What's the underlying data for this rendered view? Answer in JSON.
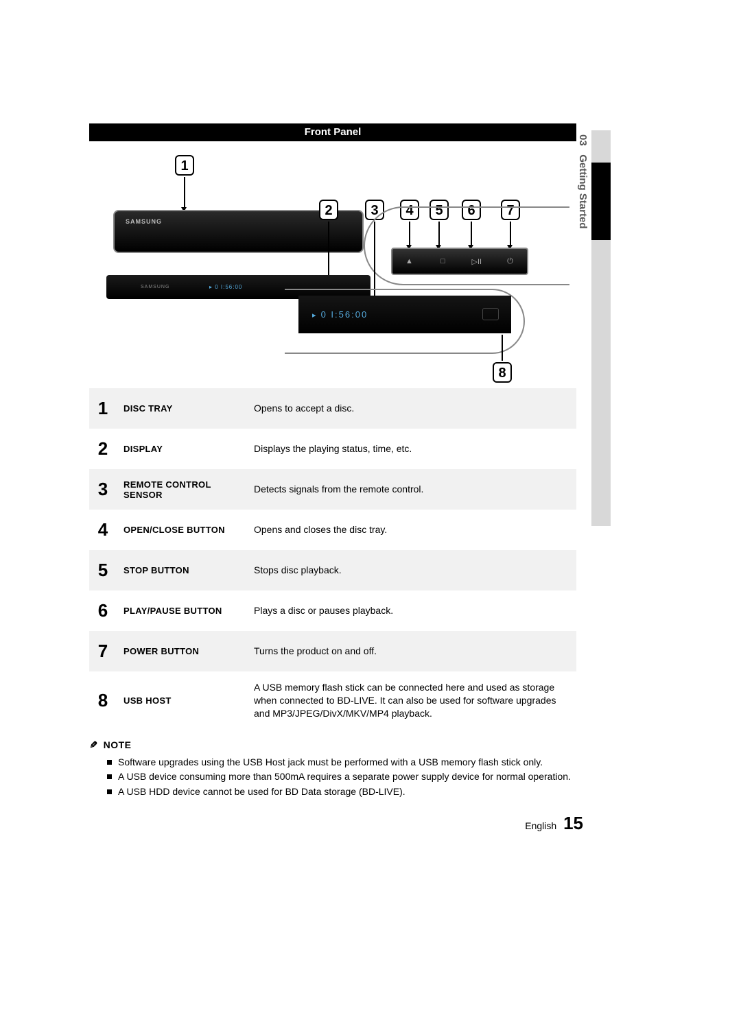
{
  "header": {
    "title": "Front Panel",
    "section_number": "03",
    "section_name": "Getting Started"
  },
  "diagram": {
    "device_brand": "SAMSUNG",
    "display_readout": "0 I:56:00",
    "control_icons": {
      "eject": "▲",
      "stop": "□",
      "play_pause": "▷II",
      "power": "⏻"
    },
    "callouts": [
      "1",
      "2",
      "3",
      "4",
      "5",
      "6",
      "7",
      "8"
    ]
  },
  "parts": [
    {
      "num": "1",
      "name": "DISC TRAY",
      "desc": "Opens to accept a disc."
    },
    {
      "num": "2",
      "name": "DISPLAY",
      "desc": "Displays the playing status, time, etc."
    },
    {
      "num": "3",
      "name": "REMOTE CONTROL SENSOR",
      "desc": "Detects signals from the remote control."
    },
    {
      "num": "4",
      "name": "OPEN/CLOSE BUTTON",
      "desc": "Opens and closes the disc tray."
    },
    {
      "num": "5",
      "name": "STOP BUTTON",
      "desc": "Stops disc playback."
    },
    {
      "num": "6",
      "name": "PLAY/PAUSE BUTTON",
      "desc": "Plays a disc or pauses playback."
    },
    {
      "num": "7",
      "name": "POWER BUTTON",
      "desc": "Turns the product on and off."
    },
    {
      "num": "8",
      "name": "USB HOST",
      "desc": "A USB memory flash stick can be connected here and used as storage when connected to BD-LIVE. It can also be used for software upgrades and MP3/JPEG/DivX/MKV/MP4 playback."
    }
  ],
  "note": {
    "label": "NOTE",
    "items": [
      "Software upgrades using the USB Host jack must be performed with a USB memory flash stick only.",
      "A USB device consuming more than 500mA requires a separate power supply device for normal operation.",
      "A USB HDD device cannot be used for BD Data storage (BD-LIVE)."
    ]
  },
  "footer": {
    "language": "English",
    "page": "15"
  }
}
